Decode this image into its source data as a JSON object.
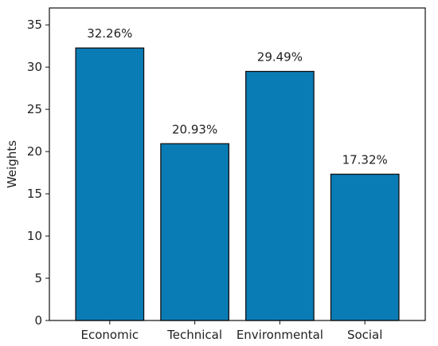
{
  "chart_data": {
    "type": "bar",
    "categories": [
      "Economic",
      "Technical",
      "Environmental",
      "Social"
    ],
    "values": [
      32.26,
      20.93,
      29.49,
      17.32
    ],
    "data_labels": [
      "32.26%",
      "20.93%",
      "29.49%",
      "17.32%"
    ],
    "title": "",
    "xlabel": "",
    "ylabel": "Weights",
    "ylim": [
      0,
      37
    ],
    "yticks": [
      0,
      5,
      10,
      15,
      20,
      25,
      30,
      35
    ],
    "grid": false,
    "bar_color": "#0A7CB5",
    "bar_edge_color": "#111111"
  }
}
